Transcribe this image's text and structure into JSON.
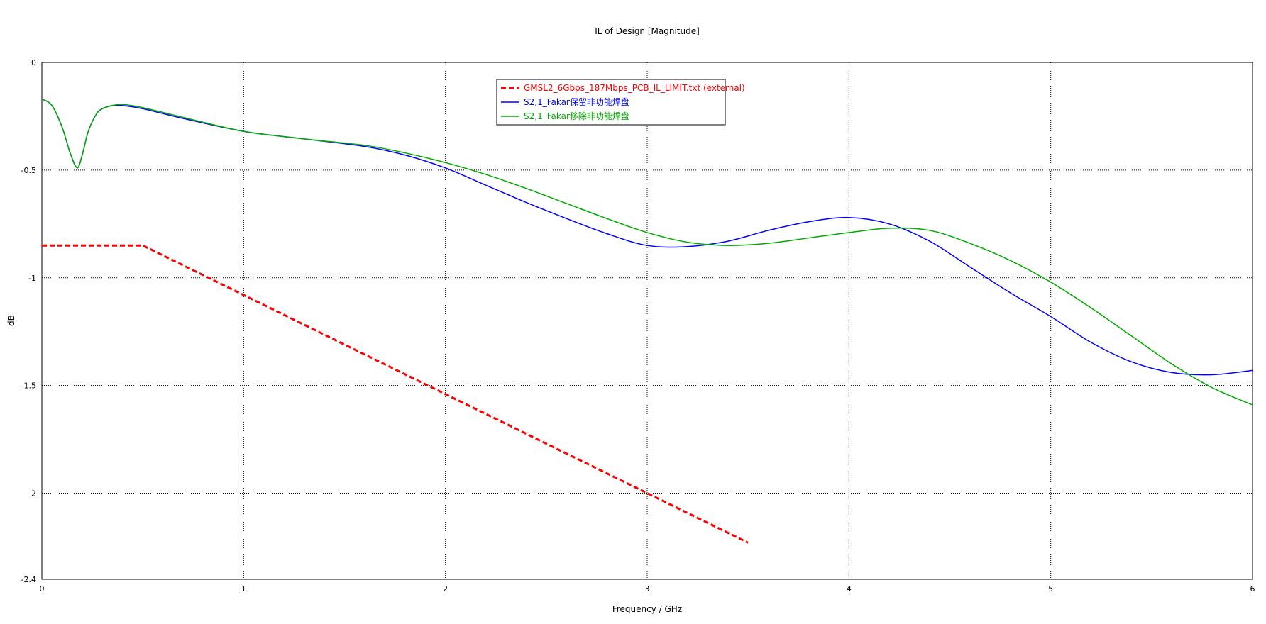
{
  "chart_data": {
    "type": "line",
    "title": "IL of Design [Magnitude]",
    "xlabel": "Frequency / GHz",
    "ylabel": "dB",
    "xlim": [
      0,
      6
    ],
    "ylim": [
      -2.4,
      0
    ],
    "x_ticks": [
      0,
      1,
      2,
      3,
      4,
      5,
      6
    ],
    "x_tick_labels": [
      "0",
      "1",
      "2",
      "3",
      "4",
      "5",
      "6"
    ],
    "y_ticks": [
      0,
      -0.5,
      -1,
      -1.5,
      -2,
      -2.4
    ],
    "y_tick_labels": [
      "0",
      "-0.5",
      "-1",
      "-1.5",
      "-2",
      "-2.4"
    ],
    "grid": true,
    "legend_position": "top-center",
    "series": [
      {
        "name": "GMSL2_6Gbps_187Mbps_PCB_IL_LIMIT.txt (external)",
        "color": "#ff0000",
        "style": "dashed",
        "x": [
          0,
          0.5,
          3.5
        ],
        "y": [
          -0.85,
          -0.85,
          -2.23
        ]
      },
      {
        "name": "S2,1_Fakar保留非功能焊盘",
        "color": "#0000ff",
        "style": "solid",
        "x": [
          0,
          0.05,
          0.1,
          0.14,
          0.175,
          0.2,
          0.23,
          0.27,
          0.3,
          0.35,
          0.4,
          0.5,
          0.7,
          1.0,
          1.3,
          1.6,
          1.8,
          2.0,
          2.2,
          2.4,
          2.6,
          2.8,
          3.0,
          3.2,
          3.4,
          3.6,
          3.8,
          4.0,
          4.2,
          4.4,
          4.6,
          4.8,
          5.0,
          5.2,
          5.4,
          5.6,
          5.8,
          6.0
        ],
        "y": [
          -0.17,
          -0.2,
          -0.3,
          -0.42,
          -0.49,
          -0.43,
          -0.32,
          -0.24,
          -0.215,
          -0.2,
          -0.2,
          -0.215,
          -0.26,
          -0.32,
          -0.355,
          -0.39,
          -0.43,
          -0.49,
          -0.57,
          -0.65,
          -0.725,
          -0.795,
          -0.85,
          -0.855,
          -0.83,
          -0.78,
          -0.74,
          -0.72,
          -0.75,
          -0.83,
          -0.95,
          -1.07,
          -1.18,
          -1.3,
          -1.39,
          -1.44,
          -1.45,
          -1.43
        ]
      },
      {
        "name": "S2,1_Fakar移除非功能焊盘",
        "color": "#00aa00",
        "style": "solid",
        "x": [
          0,
          0.05,
          0.1,
          0.14,
          0.175,
          0.2,
          0.23,
          0.27,
          0.3,
          0.35,
          0.4,
          0.5,
          0.7,
          1.0,
          1.3,
          1.6,
          1.8,
          2.0,
          2.2,
          2.4,
          2.6,
          2.8,
          3.0,
          3.2,
          3.4,
          3.6,
          3.8,
          4.0,
          4.2,
          4.4,
          4.6,
          4.8,
          5.0,
          5.2,
          5.4,
          5.6,
          5.8,
          6.0
        ],
        "y": [
          -0.17,
          -0.2,
          -0.3,
          -0.42,
          -0.49,
          -0.43,
          -0.32,
          -0.24,
          -0.215,
          -0.2,
          -0.195,
          -0.21,
          -0.255,
          -0.32,
          -0.355,
          -0.385,
          -0.42,
          -0.465,
          -0.52,
          -0.585,
          -0.655,
          -0.725,
          -0.79,
          -0.835,
          -0.85,
          -0.84,
          -0.815,
          -0.79,
          -0.77,
          -0.78,
          -0.84,
          -0.92,
          -1.02,
          -1.14,
          -1.27,
          -1.4,
          -1.51,
          -1.59
        ]
      }
    ]
  }
}
